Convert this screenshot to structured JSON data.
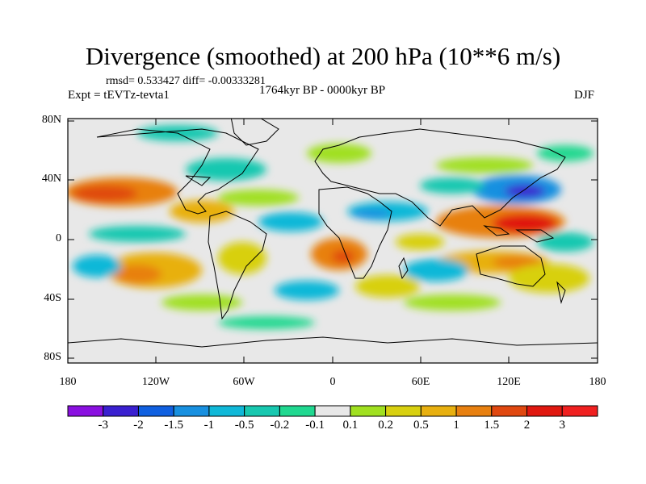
{
  "title": "Divergence (smoothed) at 200 hPa (10**6 m/s)",
  "stats": "rmsd= 0.533427 diff= -0.00333281",
  "experiment": "Expt = tEVTz-tevta1",
  "period": "1764kyr BP - 0000kyr BP",
  "season": "DJF",
  "lat_labels": [
    "80N",
    "40N",
    "0",
    "40S",
    "80S"
  ],
  "lon_labels": [
    "180",
    "120W",
    "60W",
    "0",
    "60E",
    "120E",
    "180"
  ],
  "colorbar": {
    "labels": [
      "-3",
      "-2",
      "-1.5",
      "-1",
      "-0.5",
      "-0.2",
      "-0.1",
      "0.1",
      "0.2",
      "0.5",
      "1",
      "1.5",
      "2",
      "3"
    ],
    "colors": [
      "#8a10e0",
      "#3a20d0",
      "#1060e0",
      "#1890e0",
      "#10b8d8",
      "#18c8b0",
      "#20d890",
      "#e8e8e8",
      "#a0e020",
      "#d8d010",
      "#e8b010",
      "#e88010",
      "#e04810",
      "#e01810",
      "#f02020"
    ]
  }
}
